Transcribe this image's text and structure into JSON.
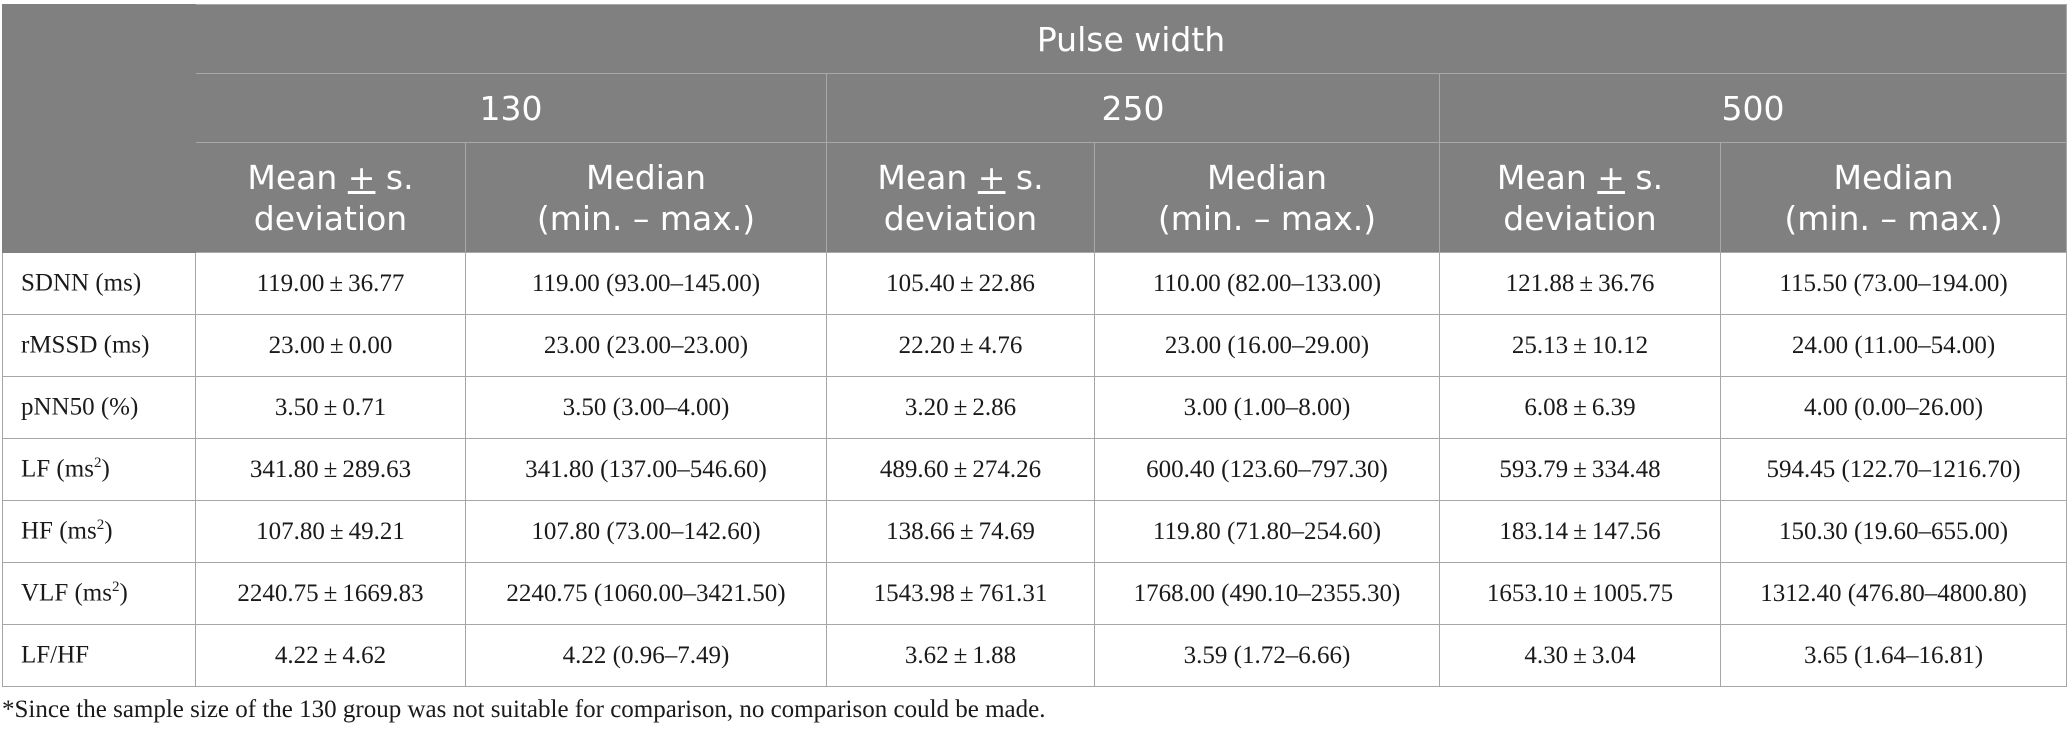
{
  "header": {
    "group_title": "Pulse width",
    "groups": [
      "130",
      "250",
      "500"
    ],
    "stat_mean": [
      "Mean ",
      "+",
      " s.",
      "deviation"
    ],
    "stat_median": [
      "Median",
      "(min. – max.)"
    ]
  },
  "rows": [
    {
      "label": "SDNN (ms)",
      "unit_sup": "",
      "label_end": "",
      "values": [
        "119.00 ± 36.77",
        "119.00 (93.00–145.00)",
        "105.40 ± 22.86",
        "110.00 (82.00–133.00)",
        "121.88 ± 36.76",
        "115.50 (73.00–194.00)"
      ]
    },
    {
      "label": "rMSSD (ms)",
      "unit_sup": "",
      "label_end": "",
      "values": [
        "23.00 ± 0.00",
        "23.00 (23.00–23.00)",
        "22.20 ± 4.76",
        "23.00 (16.00–29.00)",
        "25.13 ± 10.12",
        "24.00 (11.00–54.00)"
      ]
    },
    {
      "label": "pNN50 (%)",
      "unit_sup": "",
      "label_end": "",
      "values": [
        "3.50 ± 0.71",
        "3.50 (3.00–4.00)",
        "3.20 ± 2.86",
        "3.00 (1.00–8.00)",
        "6.08 ± 6.39",
        "4.00 (0.00–26.00)"
      ]
    },
    {
      "label": "LF (ms",
      "unit_sup": "2",
      "label_end": ")",
      "values": [
        "341.80 ± 289.63",
        "341.80 (137.00–546.60)",
        "489.60 ± 274.26",
        "600.40 (123.60–797.30)",
        "593.79 ± 334.48",
        "594.45 (122.70–1216.70)"
      ]
    },
    {
      "label": "HF (ms",
      "unit_sup": "2",
      "label_end": ")",
      "values": [
        "107.80 ± 49.21",
        "107.80 (73.00–142.60)",
        "138.66 ± 74.69",
        "119.80 (71.80–254.60)",
        "183.14 ± 147.56",
        "150.30 (19.60–655.00)"
      ]
    },
    {
      "label": "VLF (ms",
      "unit_sup": "2",
      "label_end": ")",
      "values": [
        "2240.75 ± 1669.83",
        "2240.75 (1060.00–3421.50)",
        "1543.98 ± 761.31",
        "1768.00 (490.10–2355.30)",
        "1653.10 ± 1005.75",
        "1312.40 (476.80–4800.80)"
      ]
    },
    {
      "label": "LF/HF",
      "unit_sup": "",
      "label_end": "",
      "values": [
        "4.22 ± 4.62",
        "4.22 (0.96–7.49)",
        "3.62 ± 1.88",
        "3.59 (1.72–6.66)",
        "4.30 ± 3.04",
        "3.65 (1.64–16.81)"
      ]
    }
  ],
  "footnote": "*Since the sample size of the 130 group was not suitable for comparison, no comparison could be made."
}
